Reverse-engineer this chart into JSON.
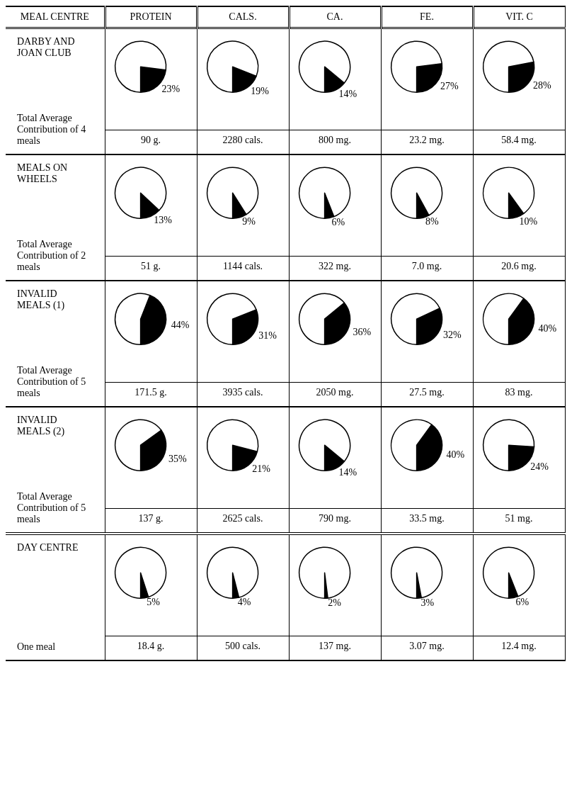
{
  "chart_data": [
    {
      "type": "other",
      "title": "MEAL CENTRE",
      "categories": [
        "PROTEIN",
        "CALS.",
        "CA.",
        "FE.",
        "VIT. C"
      ],
      "y_categories": [
        "DARBY AND JOAN CLUB",
        "MEALS ON WHEELS",
        "INVALID MEALS (1)",
        "INVALID MEALS (2)",
        "DAY CENTRE"
      ],
      "annotations": [
        "Total Average Contribution of 4 meals",
        "Total Average Contribution of 2 meals",
        "Total Average Contribution of 5 meals",
        "Total Average Contribution of 5 meals",
        "One meal"
      ]
    },
    {
      "type": "pie",
      "values": [
        23,
        77
      ],
      "colors": [
        "#000000",
        "#ffffff"
      ],
      "value_labels": [
        "23%",
        null
      ],
      "annotations": [
        "90 g."
      ]
    },
    {
      "type": "pie",
      "values": [
        19,
        81
      ],
      "colors": [
        "#000000",
        "#ffffff"
      ],
      "value_labels": [
        "19%",
        null
      ],
      "annotations": [
        "2280 cals."
      ]
    },
    {
      "type": "pie",
      "values": [
        14,
        86
      ],
      "colors": [
        "#000000",
        "#ffffff"
      ],
      "value_labels": [
        "14%",
        null
      ],
      "annotations": [
        "800 mg."
      ]
    },
    {
      "type": "pie",
      "values": [
        27,
        73
      ],
      "colors": [
        "#000000",
        "#ffffff"
      ],
      "value_labels": [
        "27%",
        null
      ],
      "annotations": [
        "23.2 mg."
      ]
    },
    {
      "type": "pie",
      "values": [
        28,
        72
      ],
      "colors": [
        "#000000",
        "#ffffff"
      ],
      "value_labels": [
        "28%",
        null
      ],
      "annotations": [
        "58.4 mg."
      ]
    },
    {
      "type": "pie",
      "values": [
        13,
        87
      ],
      "colors": [
        "#000000",
        "#ffffff"
      ],
      "value_labels": [
        "13%",
        null
      ],
      "annotations": [
        "51 g."
      ]
    },
    {
      "type": "pie",
      "values": [
        9,
        91
      ],
      "colors": [
        "#000000",
        "#ffffff"
      ],
      "value_labels": [
        "9%",
        null
      ],
      "annotations": [
        "1144 cals."
      ]
    },
    {
      "type": "pie",
      "values": [
        6,
        94
      ],
      "colors": [
        "#000000",
        "#ffffff"
      ],
      "value_labels": [
        "6%",
        null
      ],
      "annotations": [
        "322 mg."
      ]
    },
    {
      "type": "pie",
      "values": [
        8,
        92
      ],
      "colors": [
        "#000000",
        "#ffffff"
      ],
      "value_labels": [
        "8%",
        null
      ],
      "annotations": [
        "7.0 mg."
      ]
    },
    {
      "type": "pie",
      "values": [
        10,
        90
      ],
      "colors": [
        "#000000",
        "#ffffff"
      ],
      "value_labels": [
        "10%",
        null
      ],
      "annotations": [
        "20.6 mg."
      ]
    },
    {
      "type": "pie",
      "values": [
        44,
        56
      ],
      "colors": [
        "#000000",
        "#ffffff"
      ],
      "value_labels": [
        "44%",
        null
      ],
      "annotations": [
        "171.5 g."
      ]
    },
    {
      "type": "pie",
      "values": [
        31,
        69
      ],
      "colors": [
        "#000000",
        "#ffffff"
      ],
      "value_labels": [
        "31%",
        null
      ],
      "annotations": [
        "3935 cals."
      ]
    },
    {
      "type": "pie",
      "values": [
        36,
        64
      ],
      "colors": [
        "#000000",
        "#ffffff"
      ],
      "value_labels": [
        "36%",
        null
      ],
      "annotations": [
        "2050 mg."
      ]
    },
    {
      "type": "pie",
      "values": [
        32,
        68
      ],
      "colors": [
        "#000000",
        "#ffffff"
      ],
      "value_labels": [
        "32%",
        null
      ],
      "annotations": [
        "27.5 mg."
      ]
    },
    {
      "type": "pie",
      "values": [
        40,
        60
      ],
      "colors": [
        "#000000",
        "#ffffff"
      ],
      "value_labels": [
        "40%",
        null
      ],
      "annotations": [
        "83 mg."
      ]
    },
    {
      "type": "pie",
      "values": [
        35,
        65
      ],
      "colors": [
        "#000000",
        "#ffffff"
      ],
      "value_labels": [
        "35%",
        null
      ],
      "annotations": [
        "137 g."
      ]
    },
    {
      "type": "pie",
      "values": [
        21,
        79
      ],
      "colors": [
        "#000000",
        "#ffffff"
      ],
      "value_labels": [
        "21%",
        null
      ],
      "annotations": [
        "2625 cals."
      ]
    },
    {
      "type": "pie",
      "values": [
        14,
        86
      ],
      "colors": [
        "#000000",
        "#ffffff"
      ],
      "value_labels": [
        "14%",
        null
      ],
      "annotations": [
        "790 mg."
      ]
    },
    {
      "type": "pie",
      "values": [
        40,
        60
      ],
      "colors": [
        "#000000",
        "#ffffff"
      ],
      "value_labels": [
        "40%",
        null
      ],
      "annotations": [
        "33.5 mg."
      ]
    },
    {
      "type": "pie",
      "values": [
        24,
        76
      ],
      "colors": [
        "#000000",
        "#ffffff"
      ],
      "value_labels": [
        "24%",
        null
      ],
      "annotations": [
        "51 mg."
      ]
    },
    {
      "type": "pie",
      "values": [
        5,
        95
      ],
      "colors": [
        "#000000",
        "#ffffff"
      ],
      "value_labels": [
        "5%",
        null
      ],
      "annotations": [
        "18.4 g."
      ]
    },
    {
      "type": "pie",
      "values": [
        4,
        96
      ],
      "colors": [
        "#000000",
        "#ffffff"
      ],
      "value_labels": [
        "4%",
        null
      ],
      "annotations": [
        "500 cals."
      ]
    },
    {
      "type": "pie",
      "values": [
        2,
        98
      ],
      "colors": [
        "#000000",
        "#ffffff"
      ],
      "value_labels": [
        "2%",
        null
      ],
      "annotations": [
        "137 mg."
      ]
    },
    {
      "type": "pie",
      "values": [
        3,
        97
      ],
      "colors": [
        "#000000",
        "#ffffff"
      ],
      "value_labels": [
        "3%",
        null
      ],
      "annotations": [
        "3.07 mg."
      ]
    },
    {
      "type": "pie",
      "values": [
        6,
        94
      ],
      "colors": [
        "#000000",
        "#ffffff"
      ],
      "value_labels": [
        "6%",
        null
      ],
      "annotations": [
        "12.4 mg."
      ]
    }
  ]
}
